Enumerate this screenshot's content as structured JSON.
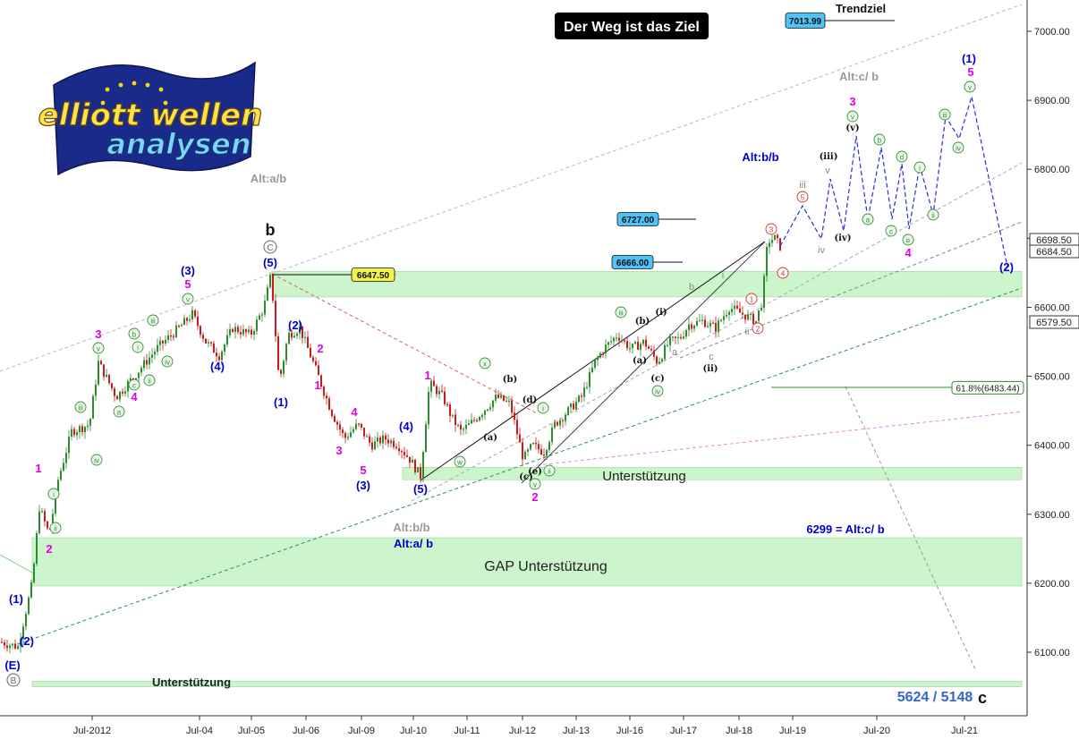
{
  "chart_data": {
    "type": "candlestick",
    "title": "Der Weg ist das Ziel",
    "y_range": [
      6040,
      7040
    ],
    "y_ticks": [
      {
        "label": "7000.00",
        "value": 7000
      },
      {
        "label": "6900.00",
        "value": 6900
      },
      {
        "label": "6800.00",
        "value": 6800
      },
      {
        "label": "6700.00",
        "value": 6700
      },
      {
        "label": "6600.00",
        "value": 6600
      },
      {
        "label": "6500.00",
        "value": 6500
      },
      {
        "label": "6400.00",
        "value": 6400
      },
      {
        "label": "6300.00",
        "value": 6300
      },
      {
        "label": "6200.00",
        "value": 6200
      },
      {
        "label": "6100.00",
        "value": 6100
      }
    ],
    "x_ticks": [
      "Jul-2012",
      "Jul-04",
      "Jul-05",
      "Jul-06",
      "Jul-09",
      "Jul-10",
      "Jul-11",
      "Jul-12",
      "Jul-13",
      "Jul-16",
      "Jul-17",
      "Jul-18",
      "Jul-19",
      "Jul-20",
      "Jul-21"
    ],
    "price_tags": [
      {
        "label": "6698.50",
        "value": 6698.5,
        "style": "white"
      },
      {
        "label": "6684.50",
        "value": 6684.5,
        "style": "white"
      },
      {
        "label": "6579.50",
        "value": 6579.5,
        "style": "white"
      },
      {
        "label": "61.8%(6483.44)",
        "value": 6483.44,
        "style": "fib"
      }
    ],
    "level_boxes": [
      {
        "label": "7013.99",
        "value": 7013.99,
        "color": "#4fc3f7"
      },
      {
        "label": "6727.00",
        "value": 6727,
        "color": "#4fc3f7"
      },
      {
        "label": "6666.00",
        "value": 6666,
        "color": "#4fc3f7"
      },
      {
        "label": "6647.50",
        "value": 6647.5,
        "color": "#f4f44a"
      }
    ],
    "zones": [
      {
        "label": "",
        "from": 6615,
        "to": 6652
      },
      {
        "label": "Unterstützung",
        "from": 6350,
        "to": 6368
      },
      {
        "label": "GAP Unterstützung",
        "from": 6196,
        "to": 6266
      },
      {
        "label": "Unterstützung",
        "from": 6050,
        "to": 6058
      }
    ],
    "text_labels": {
      "trendziel": "Trendziel",
      "alt_c_b": "Alt:c/ b",
      "alt_a_b": "Alt:a/b",
      "alt_b_b": "Alt:b/b",
      "alt_b_b_left": "Alt:b/b",
      "alt_a_b_left": "Alt:a/ b",
      "alt_c_6299": "6299 = Alt:c/ b",
      "bottom_target": "5624 / 5148",
      "c_letter": "c",
      "b_letter": "b"
    },
    "logo_text": [
      "elliott wellen",
      "analysen"
    ],
    "colors": {
      "up": "#2e8b2e",
      "down": "#cc1a1a",
      "blue": "#0000cc",
      "magenta": "#e100e1",
      "zone": "#ccf5cc",
      "circle": "#3a8f3a"
    }
  }
}
